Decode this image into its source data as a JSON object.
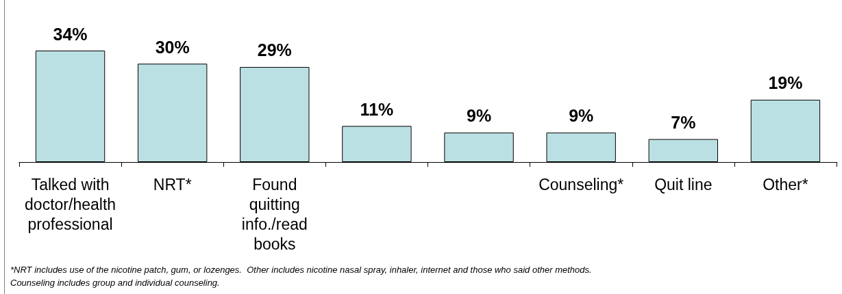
{
  "chart_data": {
    "type": "bar",
    "categories": [
      "Talked with doctor/health professional",
      "NRT*",
      "Found quitting info./read books",
      null,
      null,
      "Counseling*",
      "Quit line",
      "Other*"
    ],
    "values": [
      34,
      30,
      29,
      11,
      9,
      9,
      7,
      19
    ],
    "value_labels": [
      "34%",
      "30%",
      "29%",
      "11%",
      "9%",
      "9%",
      "7%",
      "19%"
    ],
    "color": "#bbe0e3",
    "annotations": [
      "*NRT includes use of the nicotine patch, gum, or lozenges.  Other includes nicotine nasal spray, inhaler, internet and those who said other methods.",
      "Counseling includes group and individual counseling."
    ]
  }
}
